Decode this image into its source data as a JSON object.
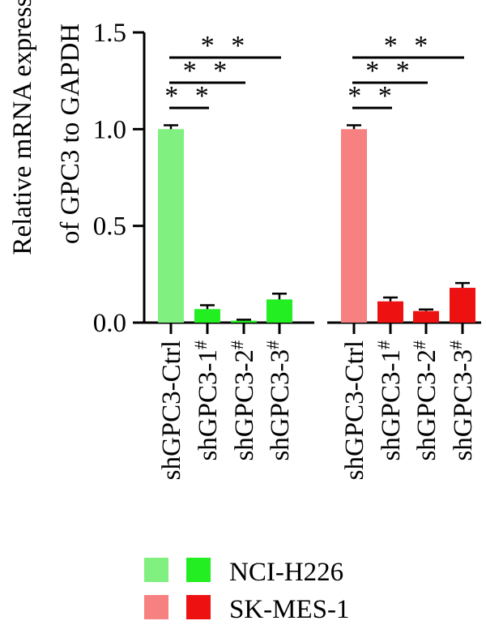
{
  "chart_data": {
    "type": "bar",
    "ylabel_line1": "Relative mRNA expression",
    "ylabel_line2": "of GPC3 to GAPDH",
    "ylim": [
      0,
      1.5
    ],
    "yticks": [
      "0.0",
      "0.5",
      "1.0",
      "1.5"
    ],
    "ytick_values": [
      0,
      0.5,
      1.0,
      1.5
    ],
    "groups": [
      {
        "name": "NCI-H226",
        "categories": [
          "shGPC3-Ctrl",
          "shGPC3-1",
          "shGPC3-2",
          "shGPC3-3"
        ],
        "superscripts": [
          "",
          "#",
          "#",
          "#"
        ],
        "values": [
          1.0,
          0.07,
          0.01,
          0.12
        ],
        "errors": [
          0.02,
          0.02,
          0.005,
          0.03
        ],
        "colors": [
          "#80f080",
          "#22ee22",
          "#22ee22",
          "#22ee22"
        ]
      },
      {
        "name": "SK-MES-1",
        "categories": [
          "shGPC3-Ctrl",
          "shGPC3-1",
          "shGPC3-2",
          "shGPC3-3"
        ],
        "superscripts": [
          "",
          "#",
          "#",
          "#"
        ],
        "values": [
          1.0,
          0.11,
          0.06,
          0.18
        ],
        "errors": [
          0.02,
          0.02,
          0.008,
          0.025
        ],
        "colors": [
          "#f78080",
          "#ee1111",
          "#ee1111",
          "#ee1111"
        ]
      }
    ],
    "significance": [
      {
        "group": 0,
        "from": 0,
        "to": 1,
        "label": "**",
        "level": 1.11
      },
      {
        "group": 0,
        "from": 0,
        "to": 2,
        "label": "**",
        "level": 1.24
      },
      {
        "group": 0,
        "from": 0,
        "to": 3,
        "label": "**",
        "level": 1.37
      },
      {
        "group": 1,
        "from": 0,
        "to": 1,
        "label": "**",
        "level": 1.11
      },
      {
        "group": 1,
        "from": 0,
        "to": 2,
        "label": "**",
        "level": 1.24
      },
      {
        "group": 1,
        "from": 0,
        "to": 3,
        "label": "**",
        "level": 1.37
      }
    ],
    "legend": {
      "placement": "bottom",
      "entries": [
        {
          "label": "NCI-H226",
          "colors": [
            "#80f080",
            "#22ee22"
          ]
        },
        {
          "label": "SK-MES-1",
          "colors": [
            "#f78080",
            "#ee1111"
          ]
        }
      ]
    }
  }
}
